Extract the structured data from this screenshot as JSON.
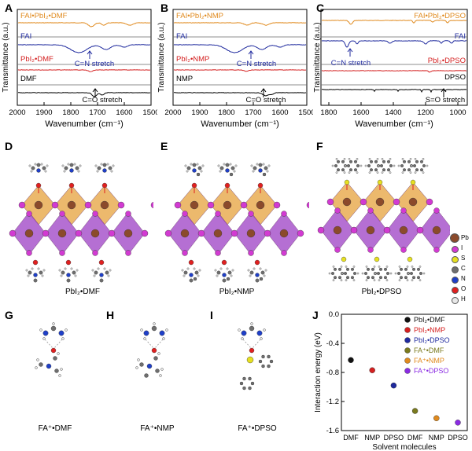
{
  "panels": {
    "A": {
      "letter": "A"
    },
    "B": {
      "letter": "B"
    },
    "C": {
      "letter": "C"
    },
    "D": {
      "letter": "D"
    },
    "E": {
      "letter": "E"
    },
    "F": {
      "letter": "F"
    },
    "G": {
      "letter": "G"
    },
    "H": {
      "letter": "H"
    },
    "I": {
      "letter": "I"
    },
    "J": {
      "letter": "J"
    }
  },
  "chart_data": [
    {
      "type": "line",
      "title": "A",
      "xlabel": "Wavenumber (cm⁻¹)",
      "ylabel": "Transmittance (a.u.)",
      "xlim": [
        2000,
        1500
      ],
      "xticks": [
        "2000",
        "1900",
        "1800",
        "1700",
        "1600",
        "1500"
      ],
      "series": [
        {
          "name": "FAI•PbI₂•DMF",
          "color": "#e08a1e"
        },
        {
          "name": "FAI",
          "color": "#1f2a9e"
        },
        {
          "name": "PbI₂•DMF",
          "color": "#d42020"
        },
        {
          "name": "DMF",
          "color": "#000000"
        }
      ],
      "annotations": [
        "C=N stretch",
        "C=O stretch"
      ]
    },
    {
      "type": "line",
      "title": "B",
      "xlabel": "Wavenumber (cm⁻¹)",
      "ylabel": "Transmittance (a.u.)",
      "xlim": [
        2000,
        1500
      ],
      "xticks": [
        "2000",
        "1900",
        "1800",
        "1700",
        "1600",
        "1500"
      ],
      "series": [
        {
          "name": "FAI•PbI₂•NMP",
          "color": "#e08a1e"
        },
        {
          "name": "FAI",
          "color": "#1f2a9e"
        },
        {
          "name": "PbI₂•NMP",
          "color": "#d42020"
        },
        {
          "name": "NMP",
          "color": "#000000"
        }
      ],
      "annotations": [
        "C=N stretch",
        "C=O stretch"
      ]
    },
    {
      "type": "line",
      "title": "C",
      "xlabel": "Wavenumber (cm⁻¹)",
      "ylabel": "Transmittance (a.u.)",
      "xlim": [
        1800,
        900
      ],
      "xticks": [
        "1800",
        "1600",
        "1400",
        "1200",
        "1000"
      ],
      "series": [
        {
          "name": "FAI•PbI₂•DPSO",
          "color": "#e08a1e"
        },
        {
          "name": "FAI",
          "color": "#1f2a9e"
        },
        {
          "name": "PbI₂•DPSO",
          "color": "#d42020"
        },
        {
          "name": "DPSO",
          "color": "#000000"
        }
      ],
      "annotations": [
        "C=N stretch",
        "S=O stretch"
      ]
    },
    {
      "type": "scatter",
      "title": "J",
      "xlabel": "Solvent molecules",
      "ylabel": "Interaction energy (eV)",
      "ylim": [
        -1.6,
        0.0
      ],
      "yticks": [
        "0.0",
        "-0.4",
        "-0.8",
        "-1.2",
        "-1.6"
      ],
      "categories": [
        "DMF",
        "NMP",
        "DPSO",
        "DMF",
        "NMP",
        "DPSO"
      ],
      "values": [
        -0.63,
        -0.77,
        -0.98,
        -1.33,
        -1.43,
        -1.49
      ],
      "colors": [
        "#111111",
        "#d42020",
        "#1f2a9e",
        "#7a7a1e",
        "#e08a1e",
        "#8a2be2"
      ],
      "legend": [
        "PbI₂•DMF",
        "PbI₂•NMP",
        "PbI₂•DPSO",
        "FA⁺•DMF",
        "FA⁺•NMP",
        "FA⁺•DPSO"
      ]
    }
  ],
  "structures": {
    "D": {
      "caption": "PbI₂•DMF"
    },
    "E": {
      "caption": "PbI₂•NMP"
    },
    "F": {
      "caption": "PbI₂•DPSO"
    },
    "G": {
      "caption": "FA⁺•DMF"
    },
    "H": {
      "caption": "FA⁺•NMP"
    },
    "I": {
      "caption": "FA⁺•DPSO"
    }
  },
  "atom_legend": [
    {
      "label": "Pb",
      "color": "#8b4a2b"
    },
    {
      "label": "I",
      "color": "#d23ad2"
    },
    {
      "label": "S",
      "color": "#e6e020"
    },
    {
      "label": "C",
      "color": "#6e6e6e"
    },
    {
      "label": "N",
      "color": "#1f3fc8"
    },
    {
      "label": "O",
      "color": "#e02020"
    },
    {
      "label": "H",
      "color": "#e8e8e8"
    }
  ]
}
